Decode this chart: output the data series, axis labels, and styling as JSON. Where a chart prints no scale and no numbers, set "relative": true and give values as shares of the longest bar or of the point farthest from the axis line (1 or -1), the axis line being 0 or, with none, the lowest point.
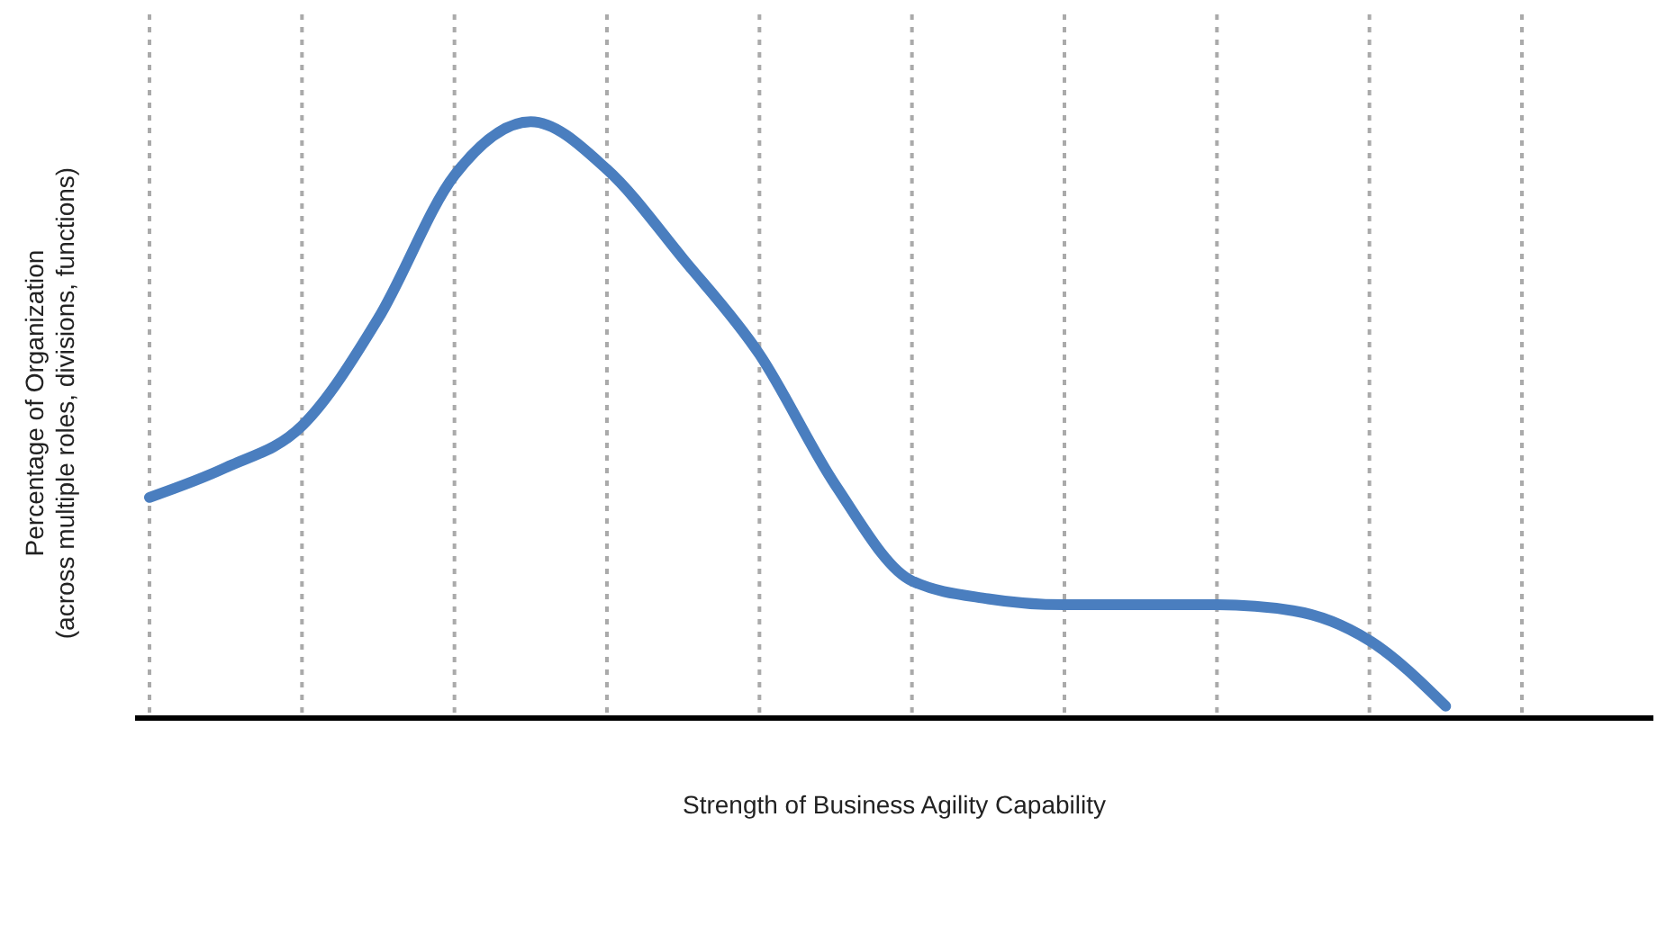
{
  "chart_data": {
    "type": "line",
    "relative": true,
    "xlabel": "Strength of Business Agility Capability",
    "ylabel": "Percentage of Organization\n(across multiple roles, divisions, functions)",
    "grid": "x",
    "marker": "none",
    "line_style": "solid",
    "categories": [
      null,
      null,
      null,
      null,
      null,
      null,
      null,
      null,
      null,
      null,
      null,
      null,
      null,
      null,
      null,
      null,
      null,
      null,
      null
    ],
    "series": [
      {
        "color": "#4a7ebf",
        "values": [
          0.37,
          0.42,
          0.49,
          0.67,
          0.91,
          1,
          0.92,
          0.77,
          0.61,
          0.39,
          0.23,
          0.2,
          0.19,
          0.19,
          0.19,
          0.18,
          0.13,
          0.02,
          null
        ]
      }
    ]
  }
}
